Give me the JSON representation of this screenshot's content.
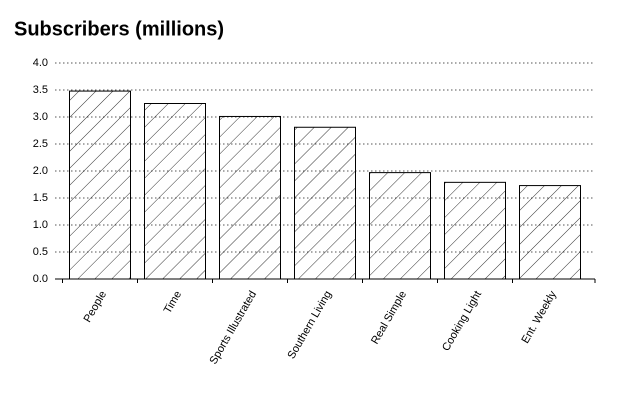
{
  "chart_data": {
    "type": "bar",
    "title": "Subscribers (millions)",
    "categories": [
      "People",
      "Time",
      "Sports Illustrated",
      "Southern Living",
      "Real Simple",
      "Cooking Light",
      "Ent. Weekly"
    ],
    "values": [
      3.48,
      3.25,
      3.01,
      2.81,
      1.97,
      1.79,
      1.73
    ],
    "color": "#000000",
    "ylim": [
      0,
      4
    ],
    "yticks": [
      {
        "value": 0,
        "label": "0.0"
      },
      0.5,
      {
        "value": 1,
        "label": "1.0"
      },
      1.5,
      {
        "value": 2,
        "label": "2.0"
      },
      2.5,
      {
        "value": 3,
        "label": "3.0"
      },
      3.5,
      {
        "value": 4,
        "label": "4.0"
      }
    ],
    "grid": true
  }
}
